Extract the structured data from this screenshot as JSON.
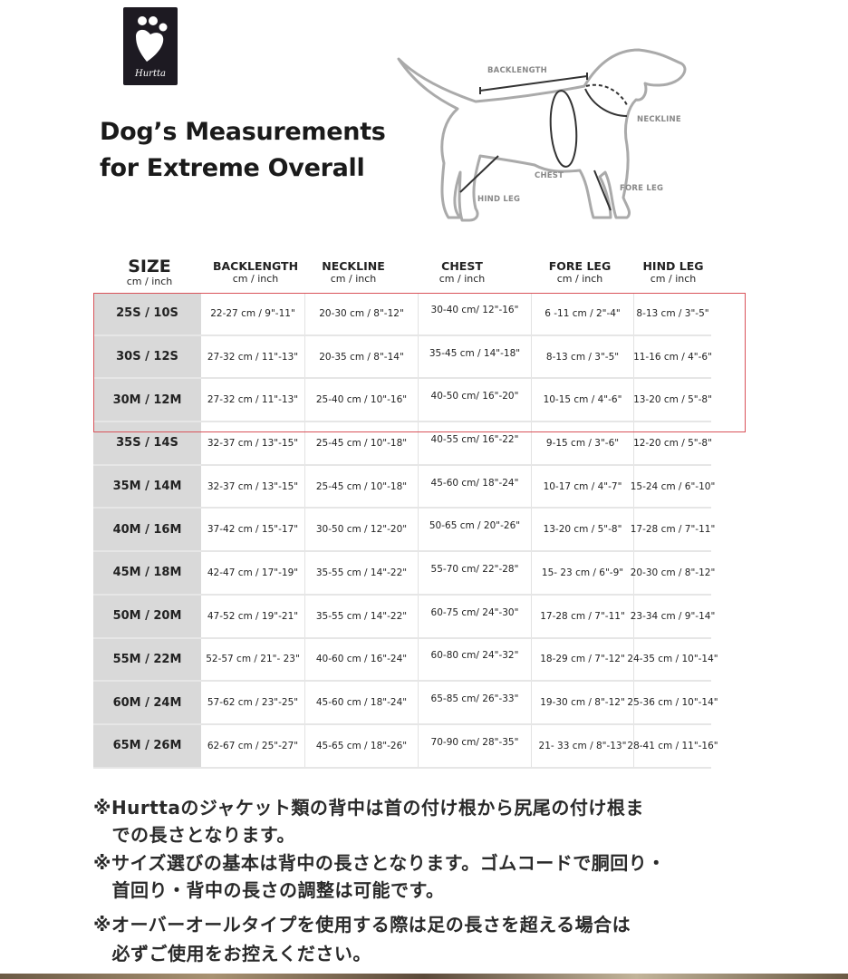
{
  "logo": {
    "brand": "Hurtta",
    "color": "#1d1a22"
  },
  "title": {
    "line1": "Dog’s Measurements",
    "line2": "for Extreme Overall"
  },
  "diagram_labels": {
    "backlength": "BACKLENGTH",
    "neckline": "NECKLINE",
    "chest": "CHEST",
    "hind_leg": "HIND LEG",
    "fore_leg": "FORE LEG"
  },
  "table": {
    "headers": [
      {
        "label": "SIZE",
        "unit": "cm / inch"
      },
      {
        "label": "BACKLENGTH",
        "unit": "cm / inch"
      },
      {
        "label": "NECKLINE",
        "unit": "cm / inch"
      },
      {
        "label": "CHEST",
        "unit": "cm / inch"
      },
      {
        "label": "FORE LEG",
        "unit": "cm / inch"
      },
      {
        "label": "HIND LEG",
        "unit": "cm / inch"
      }
    ],
    "highlight_color": "#d9535a",
    "highlighted_rows": [
      "25S / 10S",
      "30S / 12S",
      "30M / 12M"
    ],
    "rows": [
      [
        "25S / 10S",
        "22-27 cm / 9\"-11\"",
        "20-30 cm / 8\"-12\"",
        "30-40 cm/ 12\"-16\"",
        "6 -11 cm / 2\"-4\"",
        "8-13 cm / 3\"-5\""
      ],
      [
        "30S / 12S",
        "27-32 cm / 11\"-13\"",
        "20-35 cm / 8\"-14\"",
        "35-45 cm / 14\"-18\"",
        "8-13 cm / 3\"-5\"",
        "11-16 cm / 4\"-6\""
      ],
      [
        "30M / 12M",
        "27-32 cm / 11\"-13\"",
        "25-40 cm / 10\"-16\"",
        "40-50 cm/ 16\"-20\"",
        "10-15 cm / 4\"-6\"",
        "13-20 cm / 5\"-8\""
      ],
      [
        "35S / 14S",
        "32-37 cm / 13\"-15\"",
        "25-45 cm / 10\"-18\"",
        "40-55 cm/ 16\"-22\"",
        "9-15 cm / 3\"-6\"",
        "12-20 cm / 5\"-8\""
      ],
      [
        "35M / 14M",
        "32-37 cm / 13\"-15\"",
        "25-45 cm / 10\"-18\"",
        "45-60 cm/ 18\"-24\"",
        "10-17 cm / 4\"-7\"",
        "15-24 cm / 6\"-10\""
      ],
      [
        "40M / 16M",
        "37-42 cm / 15\"-17\"",
        "30-50 cm / 12\"-20\"",
        "50-65 cm / 20\"-26\"",
        "13-20 cm / 5\"-8\"",
        "17-28 cm / 7\"-11\""
      ],
      [
        "45M / 18M",
        "42-47 cm / 17\"-19\"",
        "35-55 cm / 14\"-22\"",
        "55-70 cm/ 22\"-28\"",
        "15- 23 cm / 6\"-9\"",
        "20-30 cm / 8\"-12\""
      ],
      [
        "50M / 20M",
        "47-52 cm / 19\"-21\"",
        "35-55 cm / 14\"-22\"",
        "60-75 cm/ 24\"-30\"",
        "17-28 cm / 7\"-11\"",
        "23-34 cm / 9\"-14\""
      ],
      [
        "55M / 22M",
        "52-57 cm / 21\"- 23\"",
        "40-60 cm / 16\"-24\"",
        "60-80 cm/ 24\"-32\"",
        "18-29 cm / 7\"-12\"",
        "24-35 cm / 10\"-14\""
      ],
      [
        "60M / 24M",
        "57-62 cm / 23\"-25\"",
        "45-60 cm / 18\"-24\"",
        "65-85 cm/ 26\"-33\"",
        "19-30 cm / 8\"-12\"",
        "25-36 cm / 10\"-14\""
      ],
      [
        "65M / 26M",
        "62-67 cm / 25\"-27\"",
        "45-65 cm / 18\"-26\"",
        "70-90 cm/ 28\"-35\"",
        "21- 33 cm / 8\"-13\"",
        "28-41 cm / 11\"-16\""
      ]
    ]
  },
  "notes": [
    "※Hurttaのジャケット類の背中は首の付け根から尻尾の付け根ま",
    "　での長さとなります。",
    "※サイズ選びの基本は背中の長さとなります。ゴムコードで胴回り・",
    "　首回り・背中の長さの調整は可能です。",
    "※オーバーオールタイプを使用する際は足の長さを超える場合は",
    "　必ずご使用をお控えください。"
  ]
}
